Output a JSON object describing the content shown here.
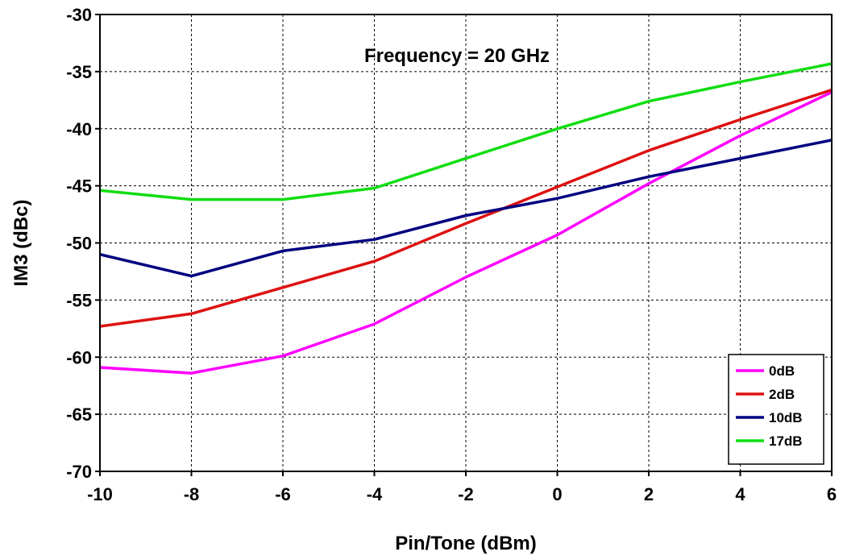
{
  "chart_data": {
    "type": "line",
    "title": "",
    "annotation": "Frequency = 20 GHz",
    "xlabel": "Pin/Tone (dBm)",
    "ylabel": "IM3 (dBc)",
    "xlim": [
      -10,
      6
    ],
    "ylim": [
      -70,
      -30
    ],
    "x_ticks": [
      -10,
      -8,
      -6,
      -4,
      -2,
      0,
      2,
      4,
      6
    ],
    "y_ticks": [
      -30,
      -35,
      -40,
      -45,
      -50,
      -55,
      -60,
      -65,
      -70
    ],
    "grid": true,
    "legend_position": "bottom-right",
    "x": [
      -10,
      -8,
      -6,
      -4,
      -2,
      0,
      2,
      4,
      6
    ],
    "series": [
      {
        "name": "0dB",
        "color": "#ff00ff",
        "values": [
          -60.9,
          -61.4,
          -59.9,
          -57.1,
          -53.0,
          -49.3,
          -44.8,
          -40.6,
          -36.8
        ]
      },
      {
        "name": "2dB",
        "color": "#dd1111",
        "values": [
          -57.3,
          -56.2,
          -53.9,
          -51.6,
          -48.3,
          -45.1,
          -41.9,
          -39.2,
          -36.6
        ]
      },
      {
        "name": "10dB",
        "color": "#000080",
        "values": [
          -51.0,
          -52.9,
          -50.7,
          -49.7,
          -47.6,
          -46.1,
          -44.2,
          -42.6,
          -41.0
        ]
      },
      {
        "name": "17dB",
        "color": "#11dd11",
        "values": [
          -45.4,
          -46.2,
          -46.2,
          -45.2,
          -42.6,
          -40.0,
          -37.6,
          -35.9,
          -34.3
        ]
      }
    ]
  }
}
